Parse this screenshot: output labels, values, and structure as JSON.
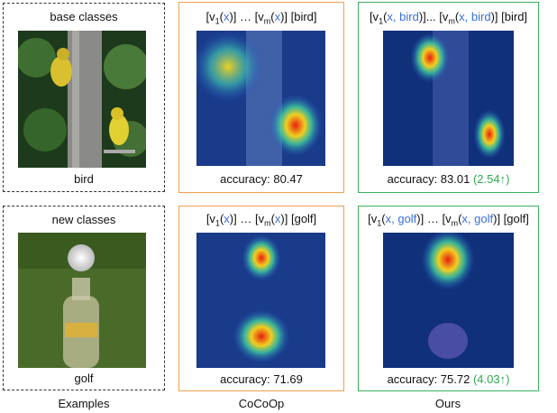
{
  "columns": {
    "examples": "Examples",
    "cocoop": "CoCoOp",
    "ours": "Ours"
  },
  "rows": [
    {
      "example": {
        "caption": "base classes",
        "label": "bird"
      },
      "cocoop": {
        "prompt": [
          "[v",
          "1",
          "(",
          "x",
          ")]  … [v",
          "m",
          "(",
          "x",
          ")] [bird]"
        ],
        "accuracy": "accuracy: 80.47"
      },
      "ours": {
        "prompt": [
          "[v",
          "1",
          "(",
          "x, bird",
          ")]... [v",
          "m",
          "(",
          "x, bird",
          ")] [bird]"
        ],
        "accuracy": "accuracy: 83.01",
        "gain": "(2.54↑)"
      }
    },
    {
      "example": {
        "caption": "new classes",
        "label": "golf"
      },
      "cocoop": {
        "prompt": [
          "[v",
          "1",
          "(",
          "x",
          ")]  … [v",
          "m",
          "(",
          "x",
          ")] [golf]"
        ],
        "accuracy": "accuracy: 71.69"
      },
      "ours": {
        "prompt": [
          "[v",
          "1",
          "(",
          "x, golf",
          ")]  … [v",
          "m",
          "(",
          "x, golf",
          ")] [golf]"
        ],
        "accuracy": "accuracy: 75.72",
        "gain": "(4.03↑)"
      }
    }
  ]
}
